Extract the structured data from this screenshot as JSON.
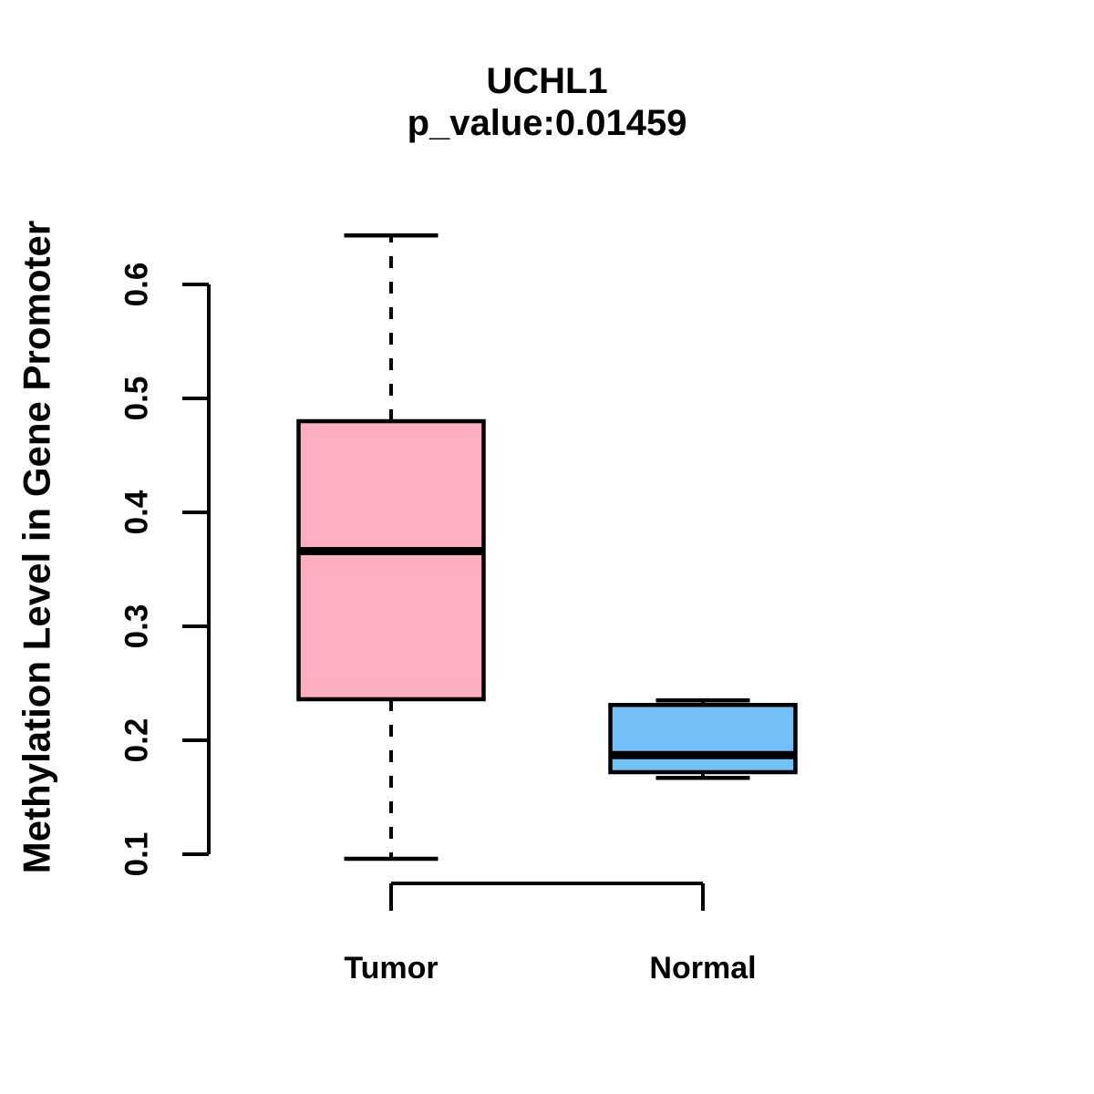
{
  "title": "UCHL1",
  "subtitle": "p_value:0.01459",
  "p_value": 0.01459,
  "ylabel": "Methylation Level in Gene Promoter",
  "chart_data": {
    "type": "boxplot",
    "title": "UCHL1",
    "subtitle": "p_value:0.01459",
    "ylabel": "Methylation Level in Gene Promoter",
    "xlabel": "",
    "ylim": [
      0.1,
      0.6
    ],
    "yticks": [
      0.1,
      0.2,
      0.3,
      0.4,
      0.5,
      0.6
    ],
    "ytick_labels": [
      "0.1",
      "0.2",
      "0.3",
      "0.4",
      "0.5",
      "0.6"
    ],
    "categories": [
      "Tumor",
      "Normal"
    ],
    "grid": "off",
    "legend": "none",
    "series": [
      {
        "name": "Tumor",
        "color": "#FFAFC0",
        "whisker_low": 0.096,
        "q1": 0.236,
        "median": 0.366,
        "q3": 0.48,
        "whisker_high": 0.643
      },
      {
        "name": "Normal",
        "color": "#73BFF7",
        "whisker_low": 0.167,
        "q1": 0.172,
        "median": 0.187,
        "q3": 0.231,
        "whisker_high": 0.235
      }
    ],
    "colors": {
      "tumor_fill": "#FFAFC0",
      "normal_fill": "#73BFF7",
      "stroke": "#000000",
      "background": "#FFFFFF"
    }
  }
}
